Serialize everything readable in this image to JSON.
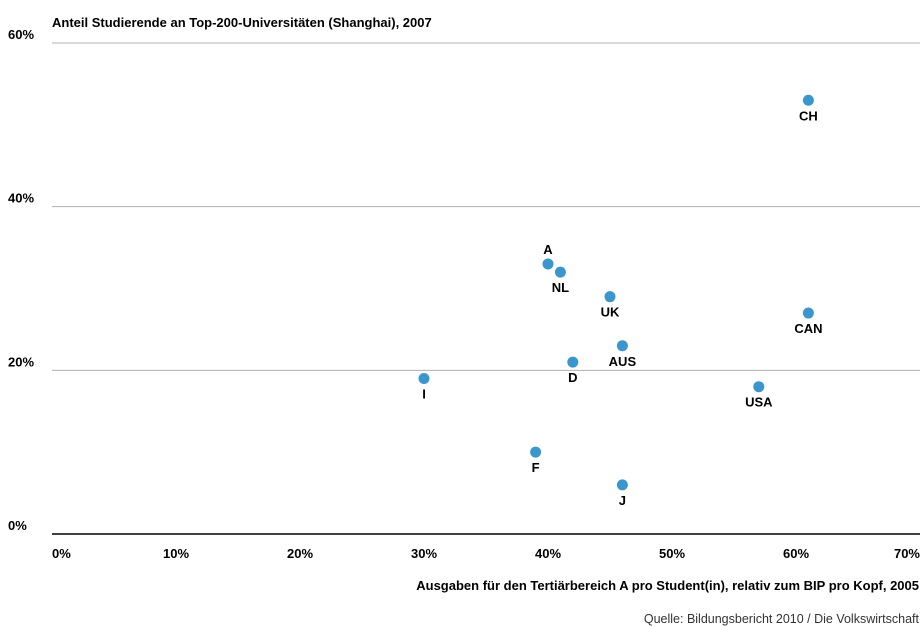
{
  "chart_data": {
    "type": "scatter",
    "title": "Anteil Studierende an Top-200-Universitäten (Shanghai), 2007",
    "xlabel": "Ausgaben für den Tertiärbereich A pro Student(in), relativ zum BIP pro Kopf, 2005",
    "ylabel": "",
    "xlim": [
      0,
      70
    ],
    "ylim": [
      0,
      60
    ],
    "x_ticks": [
      "0%",
      "10%",
      "20%",
      "30%",
      "40%",
      "50%",
      "60%",
      "70%"
    ],
    "y_ticks": [
      "0%",
      "20%",
      "40%",
      "60%"
    ],
    "grid": "horizontal",
    "marker_color": "#3a96cc",
    "points": [
      {
        "label": "CH",
        "x": 61,
        "y": 53
      },
      {
        "label": "A",
        "x": 40,
        "y": 33
      },
      {
        "label": "NL",
        "x": 41,
        "y": 32
      },
      {
        "label": "UK",
        "x": 45,
        "y": 29
      },
      {
        "label": "CAN",
        "x": 61,
        "y": 27
      },
      {
        "label": "AUS",
        "x": 46,
        "y": 23
      },
      {
        "label": "D",
        "x": 42,
        "y": 21
      },
      {
        "label": "I",
        "x": 30,
        "y": 19
      },
      {
        "label": "USA",
        "x": 57,
        "y": 18
      },
      {
        "label": "F",
        "x": 39,
        "y": 10
      },
      {
        "label": "J",
        "x": 46,
        "y": 6
      }
    ],
    "source": "Quelle: Bildungsbericht 2010 / Die Volkswirtschaft"
  }
}
